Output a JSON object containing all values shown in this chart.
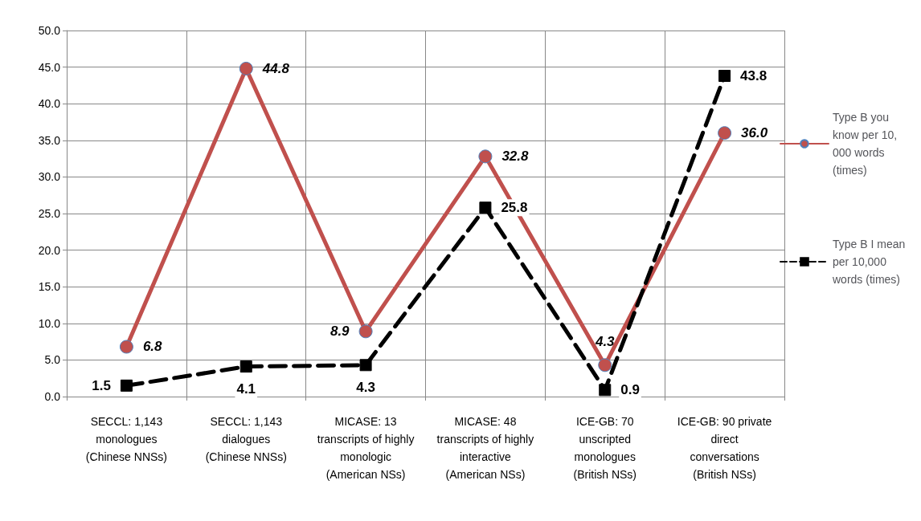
{
  "chart_data": {
    "type": "line",
    "categories": [
      "SECCL: 1,143\nmonologues\n(Chinese NNSs)",
      "SECCL: 1,143\ndialogues\n(Chinese NNSs)",
      "MICASE: 13\ntranscripts of highly\nmonologic\n(American NSs)",
      "MICASE: 48\ntranscripts of highly\ninteractive\n(American NSs)",
      "ICE-GB: 70\nunscripted\nmonologues\n(British NSs)",
      "ICE-GB: 90 private\ndirect\nconversations\n(British NSs)"
    ],
    "series": [
      {
        "name": "Type B you know per 10,000 words (times)",
        "color": "#c0504d",
        "marker": "circle",
        "line_style": "solid",
        "values": [
          6.8,
          44.8,
          8.9,
          32.8,
          4.3,
          36.0
        ],
        "value_labels": [
          "6.8",
          "44.8",
          "8.9",
          "32.8",
          "4.3",
          "36.0"
        ]
      },
      {
        "name": "Type B I mean per 10,000 words (times)",
        "color": "#000000",
        "marker": "square",
        "line_style": "dashed",
        "values": [
          1.5,
          4.1,
          4.3,
          25.8,
          0.9,
          43.8
        ],
        "value_labels": [
          "1.5",
          "4.1",
          "4.3",
          "25.8",
          "0.9",
          "43.8"
        ]
      }
    ],
    "ylim": [
      0,
      50
    ],
    "yticks": [
      {
        "value": 0,
        "label": "0.0"
      },
      {
        "value": 5,
        "label": "5.0"
      },
      {
        "value": 10,
        "label": "10.0"
      },
      {
        "value": 15,
        "label": "15.0"
      },
      {
        "value": 20,
        "label": "20.0"
      },
      {
        "value": 25,
        "label": "25.0"
      },
      {
        "value": 30,
        "label": "30.0"
      },
      {
        "value": 35,
        "label": "35.0"
      },
      {
        "value": 40,
        "label": "40.0"
      },
      {
        "value": 45,
        "label": "45.0"
      },
      {
        "value": 50,
        "label": "50.0"
      }
    ],
    "grid": true,
    "legend": "right"
  }
}
